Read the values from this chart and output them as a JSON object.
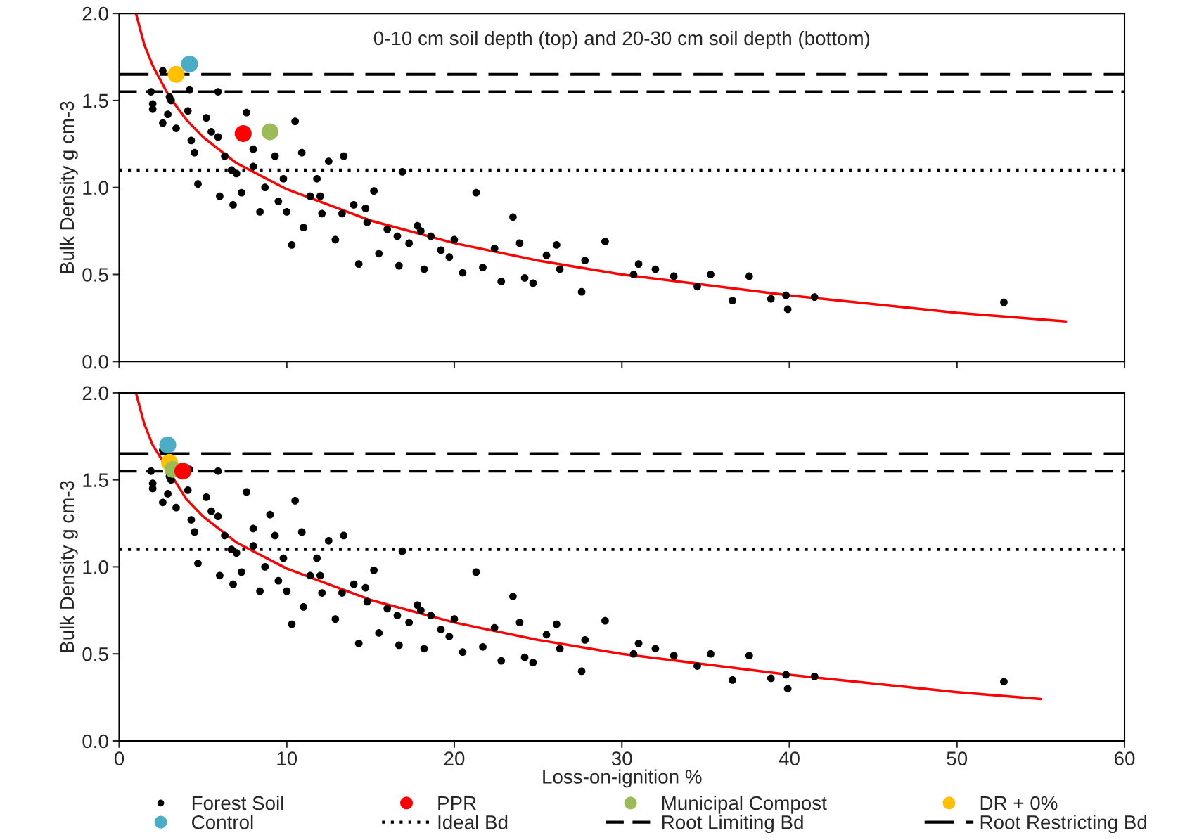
{
  "chart_data": [
    {
      "type": "scatter",
      "title": "0-10 cm soil depth (top) and 20-30 cm soil depth (bottom)",
      "ylabel": "Bulk Density g cm-3",
      "xlim": [
        0,
        60
      ],
      "xticks": [
        0,
        10,
        20,
        30,
        40,
        50,
        60
      ],
      "ylim": [
        0,
        2
      ],
      "yticks": [
        {
          "value": 0,
          "label": "0.0"
        },
        {
          "value": 0.5,
          "label": "0.5"
        },
        {
          "value": 1,
          "label": "1.0"
        },
        {
          "value": 1.5,
          "label": "1.5"
        },
        {
          "value": 2,
          "label": "2.0"
        }
      ],
      "tick_labels": "y",
      "grid": false,
      "legend": false,
      "marker": "circle",
      "ref_lines": [
        {
          "axis": "y",
          "value": 1.1,
          "line_style": "dotted",
          "color": "#000000"
        },
        {
          "axis": "y",
          "value": 1.55,
          "line_style": "dashed",
          "color": "#000000"
        },
        {
          "axis": "y",
          "value": 1.65,
          "line_style": "longdash",
          "color": "#000000"
        }
      ],
      "series": [
        {
          "color": "#000000",
          "x": [
            1.9,
            2.0,
            2.0,
            2.6,
            2.6,
            2.9,
            3.0,
            3.1,
            3.4,
            4.2,
            4.1,
            4.3,
            4.5,
            4.7,
            5.2,
            5.5,
            5.9,
            5.9,
            6.0,
            6.3,
            6.7,
            6.8,
            7.0,
            7.6,
            7.3,
            8.0,
            8.4,
            8.7,
            9.3,
            9.5,
            9.8,
            10.0,
            10.3,
            10.5,
            10.9,
            11.0,
            11.4,
            11.8,
            12.1,
            12.5,
            12.9,
            13.4,
            13.3,
            14.0,
            14.3,
            14.8,
            15.2,
            15.5,
            16.0,
            16.6,
            16.9,
            16.7,
            17.3,
            17.8,
            18.2,
            18.6,
            19.2,
            19.7,
            20.5,
            21.3,
            21.7,
            22.4,
            22.8,
            23.5,
            23.9,
            24.2,
            24.7,
            25.5,
            26.1,
            26.3,
            27.6,
            27.8,
            29.0,
            30.7,
            31.0,
            32.0,
            33.1,
            34.5,
            35.3,
            36.6,
            37.6,
            38.9,
            39.8,
            39.9,
            41.5,
            52.8,
            14.7,
            18.0,
            20.0,
            12.0,
            8.0
          ],
          "values": [
            1.55,
            1.48,
            1.45,
            1.67,
            1.37,
            1.42,
            1.52,
            1.5,
            1.34,
            1.56,
            1.44,
            1.27,
            1.2,
            1.02,
            1.4,
            1.32,
            1.29,
            1.55,
            0.95,
            1.18,
            1.1,
            0.9,
            1.08,
            1.43,
            0.97,
            1.12,
            0.86,
            1.0,
            1.18,
            0.92,
            1.05,
            0.86,
            0.67,
            1.38,
            1.2,
            0.77,
            0.95,
            1.05,
            0.85,
            1.15,
            0.7,
            1.18,
            0.85,
            0.9,
            0.56,
            0.8,
            0.98,
            0.62,
            0.76,
            0.72,
            1.09,
            0.55,
            0.68,
            0.78,
            0.53,
            0.72,
            0.64,
            0.6,
            0.51,
            0.97,
            0.54,
            0.65,
            0.46,
            0.83,
            0.68,
            0.48,
            0.45,
            0.61,
            0.67,
            0.53,
            0.4,
            0.58,
            0.69,
            0.5,
            0.56,
            0.53,
            0.49,
            0.43,
            0.5,
            0.35,
            0.49,
            0.36,
            0.38,
            0.3,
            0.37,
            0.34,
            0.88,
            0.75,
            0.7,
            0.95,
            1.22
          ]
        },
        {
          "color": "#ff0000",
          "x": [
            7.4
          ],
          "values": [
            1.31
          ]
        },
        {
          "color": "#9bbb59",
          "x": [
            9.0
          ],
          "values": [
            1.32
          ]
        },
        {
          "color": "#ffc000",
          "x": [
            3.4
          ],
          "values": [
            1.65
          ]
        },
        {
          "color": "#4bacc6",
          "x": [
            4.2
          ],
          "values": [
            1.71
          ]
        },
        {
          "type": "line",
          "color": "#ff0000",
          "marker": "none",
          "x": [
            1.0,
            1.5,
            2,
            3,
            4,
            5,
            7,
            10,
            15,
            20,
            25,
            30,
            40,
            50,
            56.5
          ],
          "values": [
            2.0,
            1.82,
            1.7,
            1.52,
            1.39,
            1.29,
            1.14,
            0.99,
            0.81,
            0.68,
            0.58,
            0.5,
            0.38,
            0.28,
            0.23
          ]
        }
      ]
    },
    {
      "type": "scatter",
      "xlabel": "Loss-on-ignition %",
      "ylabel": "Bulk Density g cm-3",
      "xlim": [
        0,
        60
      ],
      "xticks": [
        0,
        10,
        20,
        30,
        40,
        50,
        60
      ],
      "ylim": [
        0,
        2
      ],
      "yticks": [
        {
          "value": 0,
          "label": "0.0"
        },
        {
          "value": 0.5,
          "label": "0.5"
        },
        {
          "value": 1,
          "label": "1.0"
        },
        {
          "value": 1.5,
          "label": "1.5"
        },
        {
          "value": 2,
          "label": "2.0"
        }
      ],
      "grid": false,
      "legend": "bottom",
      "marker": "circle",
      "ref_lines": [
        {
          "axis": "y",
          "value": 1.1,
          "label": "Ideal Bd",
          "line_style": "dotted",
          "color": "#000000"
        },
        {
          "axis": "y",
          "value": 1.55,
          "label": "Root Limiting Bd",
          "line_style": "dashed",
          "color": "#000000"
        },
        {
          "axis": "y",
          "value": 1.65,
          "label": "Root Restricting Bd",
          "line_style": "longdash",
          "color": "#000000"
        }
      ],
      "series": [
        {
          "name": "Forest Soil",
          "color": "#000000",
          "x": [
            1.9,
            2.0,
            2.0,
            2.6,
            2.6,
            2.9,
            3.0,
            3.1,
            3.4,
            4.2,
            4.1,
            4.3,
            4.5,
            4.7,
            5.2,
            5.5,
            5.9,
            5.9,
            6.0,
            6.3,
            6.7,
            6.8,
            7.0,
            7.6,
            7.3,
            8.0,
            8.4,
            8.7,
            9.3,
            9.5,
            9.8,
            10.0,
            10.3,
            10.5,
            10.9,
            11.0,
            11.4,
            11.8,
            12.1,
            12.5,
            12.9,
            13.4,
            13.3,
            14.0,
            14.3,
            14.8,
            15.2,
            15.5,
            16.0,
            16.6,
            16.9,
            16.7,
            17.3,
            17.8,
            18.2,
            18.6,
            19.2,
            19.7,
            20.5,
            21.3,
            21.7,
            22.4,
            22.8,
            23.5,
            23.9,
            24.2,
            24.7,
            25.5,
            26.1,
            26.3,
            27.6,
            27.8,
            29.0,
            30.7,
            31.0,
            32.0,
            33.1,
            34.5,
            35.3,
            36.6,
            37.6,
            38.9,
            39.8,
            39.9,
            41.5,
            52.8,
            14.7,
            18.0,
            20.0,
            12.0,
            8.0,
            9.0
          ],
          "values": [
            1.55,
            1.48,
            1.45,
            1.67,
            1.37,
            1.42,
            1.52,
            1.5,
            1.34,
            1.56,
            1.44,
            1.27,
            1.2,
            1.02,
            1.4,
            1.32,
            1.29,
            1.55,
            0.95,
            1.18,
            1.1,
            0.9,
            1.08,
            1.43,
            0.97,
            1.12,
            0.86,
            1.0,
            1.18,
            0.92,
            1.05,
            0.86,
            0.67,
            1.38,
            1.2,
            0.77,
            0.95,
            1.05,
            0.85,
            1.15,
            0.7,
            1.18,
            0.85,
            0.9,
            0.56,
            0.8,
            0.98,
            0.62,
            0.76,
            0.72,
            1.09,
            0.55,
            0.68,
            0.78,
            0.53,
            0.72,
            0.64,
            0.6,
            0.51,
            0.97,
            0.54,
            0.65,
            0.46,
            0.83,
            0.68,
            0.48,
            0.45,
            0.61,
            0.67,
            0.53,
            0.4,
            0.58,
            0.69,
            0.5,
            0.56,
            0.53,
            0.49,
            0.43,
            0.5,
            0.35,
            0.49,
            0.36,
            0.38,
            0.3,
            0.37,
            0.34,
            0.88,
            0.75,
            0.7,
            0.95,
            1.22,
            1.3
          ]
        },
        {
          "name": "PPR",
          "color": "#ff0000",
          "x": [
            3.8
          ],
          "values": [
            1.55
          ]
        },
        {
          "name": "Municipal Compost",
          "color": "#9bbb59",
          "x": [
            3.2
          ],
          "values": [
            1.56
          ]
        },
        {
          "name": "DR + 0%",
          "color": "#ffc000",
          "x": [
            3.0
          ],
          "values": [
            1.6
          ]
        },
        {
          "name": "Control",
          "color": "#4bacc6",
          "x": [
            2.9
          ],
          "values": [
            1.7
          ]
        },
        {
          "type": "line",
          "color": "#ff0000",
          "marker": "none",
          "x": [
            1.0,
            1.5,
            2,
            4,
            5,
            7,
            10,
            15,
            20,
            25,
            30,
            40,
            50,
            55
          ],
          "values": [
            2.0,
            1.82,
            1.7,
            1.39,
            1.29,
            1.14,
            0.99,
            0.81,
            0.68,
            0.58,
            0.5,
            0.38,
            0.28,
            0.24
          ]
        }
      ]
    }
  ]
}
